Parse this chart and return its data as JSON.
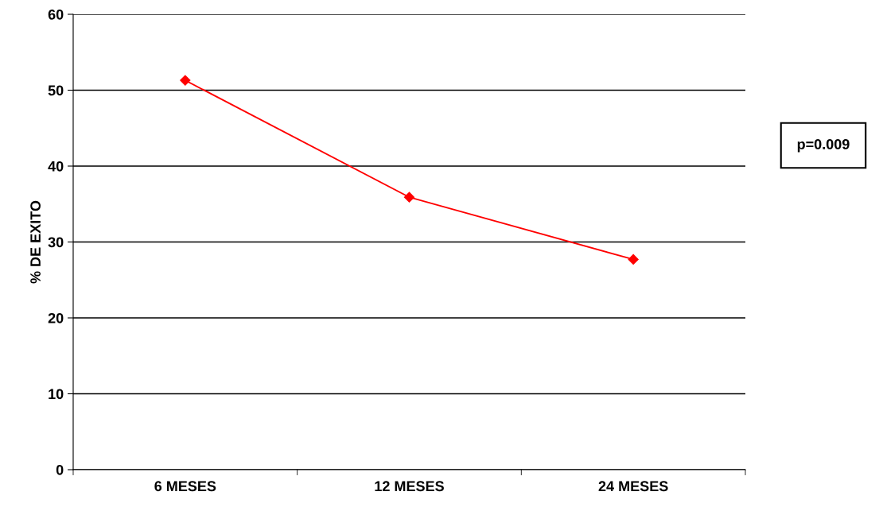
{
  "chart_data": {
    "type": "line",
    "ylabel": "% DE EXITO",
    "categories": [
      "6 MESES",
      "12 MESES",
      "24 MESES"
    ],
    "series": [
      {
        "color": "#ff0000",
        "values": [
          51.3,
          35.9,
          27.7
        ]
      }
    ],
    "ylim": [
      0,
      60
    ],
    "yticks": [
      0,
      10,
      20,
      30,
      40,
      50,
      60
    ],
    "grid": "y",
    "marker": "diamond",
    "line_style": "solid",
    "annotations": [
      "p=0.009"
    ]
  }
}
